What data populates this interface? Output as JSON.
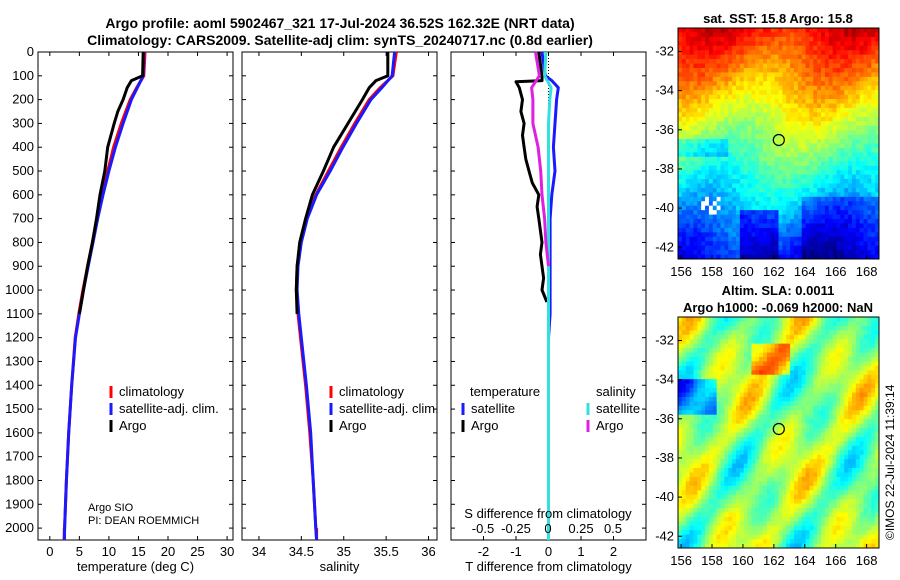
{
  "title_line1": "Argo profile: aoml 5902467_321 17-Jul-2024 36.52S 162.32E (NRT data)",
  "title_line2": "Climatology: CARS2009. Satellite-adj clim: synTS_20240717.nc (0.8d earlier)",
  "credit_line1": "Argo SIO",
  "credit_line2": "PI: DEAN ROEMMICH",
  "imos_credit": "©IMOS 22-Jul-2024 11:39:14",
  "colors": {
    "climatology": "#ff0000",
    "satellite_adj": "#1a1aff",
    "argo": "#000000",
    "sal_satellite": "#33e0e0",
    "sal_argo": "#e020e0"
  },
  "chart_data": [
    {
      "type": "line",
      "id": "temperature",
      "xlabel": "temperature (deg C)",
      "ylabel": "",
      "xlim": [
        -2,
        31
      ],
      "ylim": [
        2050,
        0
      ],
      "xticks": [
        0,
        5,
        10,
        15,
        20,
        25,
        30
      ],
      "yticks": [
        0,
        100,
        200,
        300,
        400,
        500,
        600,
        700,
        800,
        900,
        1000,
        1100,
        1200,
        1300,
        1400,
        1500,
        1600,
        1700,
        1800,
        1900,
        2000
      ],
      "legend": [
        "climatology",
        "satellite-adj. clim.",
        "Argo"
      ],
      "legend_position": "lower-right",
      "series": [
        {
          "name": "climatology",
          "color": "#ff0000",
          "depth": [
            0,
            100,
            150,
            200,
            300,
            400,
            500,
            600,
            700,
            800,
            900,
            1000,
            1100,
            1200,
            1400,
            1600,
            1800,
            2000,
            2050
          ],
          "values": [
            16.1,
            15.9,
            14.7,
            13.6,
            12.1,
            10.8,
            9.8,
            8.9,
            8.0,
            7.2,
            6.4,
            5.6,
            4.9,
            4.3,
            3.7,
            3.2,
            2.8,
            2.5,
            2.45
          ]
        },
        {
          "name": "satellite-adj. clim.",
          "color": "#1a1aff",
          "depth": [
            0,
            100,
            150,
            200,
            300,
            400,
            500,
            600,
            700,
            800,
            900,
            1000,
            1100,
            1200,
            1400,
            1600,
            1800,
            2000,
            2050
          ],
          "values": [
            15.9,
            15.8,
            14.8,
            13.8,
            12.4,
            11.1,
            10.0,
            9.0,
            8.1,
            7.3,
            6.5,
            5.7,
            5.0,
            4.35,
            3.7,
            3.2,
            2.8,
            2.5,
            2.45
          ]
        },
        {
          "name": "Argo",
          "color": "#000000",
          "depth": [
            0,
            100,
            120,
            150,
            200,
            250,
            300,
            400,
            500,
            600,
            700,
            800,
            900,
            1000,
            1100
          ],
          "values": [
            15.8,
            15.7,
            13.8,
            13.1,
            12.4,
            11.5,
            10.9,
            9.8,
            9.3,
            8.5,
            7.9,
            7.2,
            6.4,
            5.7,
            5.0
          ]
        }
      ]
    },
    {
      "type": "line",
      "id": "salinity",
      "xlabel": "salinity",
      "ylabel": "",
      "xlim": [
        33.8,
        36.1
      ],
      "ylim": [
        2050,
        0
      ],
      "xticks": [
        34,
        34.5,
        35,
        35.5,
        36
      ],
      "legend": [
        "climatology",
        "satellite-adj. clim.",
        "Argo"
      ],
      "legend_position": "lower-right",
      "series": [
        {
          "name": "climatology",
          "color": "#ff0000",
          "depth": [
            0,
            100,
            150,
            200,
            300,
            400,
            500,
            600,
            700,
            800,
            900,
            1000,
            1100,
            1200,
            1400,
            1600,
            1800,
            2000,
            2050
          ],
          "values": [
            35.62,
            35.58,
            35.43,
            35.3,
            35.13,
            34.97,
            34.82,
            34.67,
            34.56,
            34.49,
            34.45,
            34.44,
            34.46,
            34.49,
            34.55,
            34.6,
            34.64,
            34.67,
            34.68
          ]
        },
        {
          "name": "satellite-adj. clim.",
          "color": "#1a1aff",
          "depth": [
            0,
            100,
            150,
            200,
            300,
            400,
            500,
            600,
            700,
            800,
            900,
            1000,
            1100,
            1200,
            1400,
            1600,
            1800,
            2000,
            2050
          ],
          "values": [
            35.6,
            35.57,
            35.45,
            35.32,
            35.15,
            34.99,
            34.84,
            34.68,
            34.57,
            34.5,
            34.46,
            34.45,
            34.47,
            34.5,
            34.56,
            34.61,
            34.64,
            34.67,
            34.68
          ]
        },
        {
          "name": "Argo",
          "color": "#000000",
          "depth": [
            0,
            100,
            120,
            150,
            200,
            300,
            400,
            500,
            600,
            700,
            800,
            900,
            1000,
            1100
          ],
          "values": [
            35.52,
            35.52,
            35.38,
            35.3,
            35.22,
            35.05,
            34.88,
            34.76,
            34.63,
            34.55,
            34.48,
            34.45,
            34.44,
            34.45
          ]
        }
      ]
    },
    {
      "type": "line",
      "id": "difference",
      "xlabel": "T difference from climatology",
      "secondary_xlabel": "S difference from climatology",
      "xlim": [
        -3,
        3
      ],
      "ylim": [
        2050,
        0
      ],
      "xticks": [
        -2,
        -1,
        0,
        1,
        2
      ],
      "secondary_xticks": [
        "-0.5",
        "-0.25",
        "0",
        "0.25",
        "0.5"
      ],
      "legend_temperature_title": "temperature",
      "legend_salinity_title": "salinity",
      "legend_temperature": [
        "satellite",
        "Argo"
      ],
      "legend_salinity": [
        "satellite",
        "Argo"
      ],
      "series": [
        {
          "name": "T satellite",
          "color": "#1a1aff",
          "depth": [
            0,
            100,
            120,
            150,
            200,
            300,
            400,
            500,
            600,
            700,
            800,
            900,
            1000,
            1100,
            1200,
            1400,
            1600,
            1800,
            2000,
            2050
          ],
          "values": [
            -0.2,
            -0.1,
            0.1,
            0.3,
            0.25,
            0.2,
            0.15,
            0.2,
            0.1,
            0.05,
            0.05,
            0.05,
            0.05,
            0.05,
            0.0,
            0.0,
            0.0,
            0.0,
            0.0,
            0.0
          ]
        },
        {
          "name": "T Argo",
          "color": "#000000",
          "depth": [
            0,
            100,
            120,
            125,
            150,
            200,
            250,
            300,
            350,
            400,
            450,
            500,
            550,
            600,
            650,
            700,
            750,
            800,
            850,
            900,
            950,
            1000,
            1050
          ],
          "values": [
            -0.3,
            -0.2,
            -0.2,
            -1.0,
            -0.9,
            -0.8,
            -0.85,
            -0.75,
            -0.8,
            -0.75,
            -0.7,
            -0.6,
            -0.5,
            -0.3,
            -0.35,
            -0.3,
            -0.25,
            -0.2,
            -0.25,
            -0.2,
            -0.15,
            -0.2,
            -0.05
          ]
        },
        {
          "name": "S satellite",
          "color": "#33e0e0",
          "depth": [
            0,
            100,
            150,
            200,
            300,
            500,
            800,
            1000,
            1200,
            1600,
            2000,
            2050
          ],
          "values": [
            -0.02,
            -0.03,
            0.02,
            0.01,
            0.0,
            0.0,
            0.0,
            0.0,
            0.0,
            0.0,
            0.0,
            0.0
          ]
        },
        {
          "name": "S Argo",
          "color": "#e020e0",
          "depth": [
            0,
            100,
            150,
            200,
            300,
            400,
            500,
            600,
            700,
            800,
            900
          ],
          "values": [
            -0.1,
            -0.07,
            -0.13,
            -0.12,
            -0.12,
            -0.08,
            -0.06,
            -0.05,
            -0.03,
            -0.02,
            0.0
          ]
        }
      ]
    },
    {
      "type": "heatmap",
      "id": "sst_map",
      "title": "sat. SST: 15.8 Argo: 15.8",
      "xticks": [
        156,
        158,
        160,
        162,
        164,
        166,
        168
      ],
      "yticks": [
        -32,
        -34,
        -36,
        -38,
        -40,
        -42
      ],
      "xlim": [
        155.8,
        168.8
      ],
      "ylim": [
        -30.8,
        -42.6
      ],
      "argo_lon": 162.32,
      "argo_lat": -36.52
    },
    {
      "type": "heatmap",
      "id": "sla_map",
      "title": "Altim. SLA: 0.0011",
      "subtitle": "Argo h1000: -0.069 h2000: NaN",
      "xticks": [
        156,
        158,
        160,
        162,
        164,
        166,
        168
      ],
      "yticks": [
        -32,
        -34,
        -36,
        -38,
        -40,
        -42
      ],
      "xlim": [
        155.8,
        168.8
      ],
      "ylim": [
        -30.8,
        -42.6
      ],
      "argo_lon": 162.32,
      "argo_lat": -36.52
    }
  ]
}
